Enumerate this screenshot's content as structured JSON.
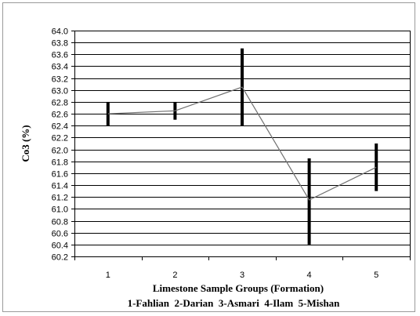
{
  "chart_data": {
    "type": "line",
    "title": "",
    "xlabel": "Limestone Sample Groups (Formation)",
    "xlabel_line2": "1-Fahlian  2-Darian  3-Asmari  4-Ilam  5-Mishan",
    "ylabel": "Co3 (%)",
    "ylim": [
      60.2,
      64.0
    ],
    "y_tick_step": 0.2,
    "grid": true,
    "legend": "none",
    "x": [
      1,
      2,
      3,
      4,
      5
    ],
    "series": [
      {
        "values": [
          62.6,
          62.65,
          63.05,
          61.15,
          61.7
        ]
      }
    ],
    "error_bars": [
      {
        "x": 1,
        "low": 62.4,
        "high": 62.8
      },
      {
        "x": 2,
        "low": 62.5,
        "high": 62.8
      },
      {
        "x": 3,
        "low": 62.4,
        "high": 63.7
      },
      {
        "x": 4,
        "low": 60.4,
        "high": 61.85
      },
      {
        "x": 5,
        "low": 61.3,
        "high": 62.1
      }
    ],
    "colors": {
      "line": "#707070",
      "error_bar": "#000000",
      "grid": "#000000"
    }
  }
}
